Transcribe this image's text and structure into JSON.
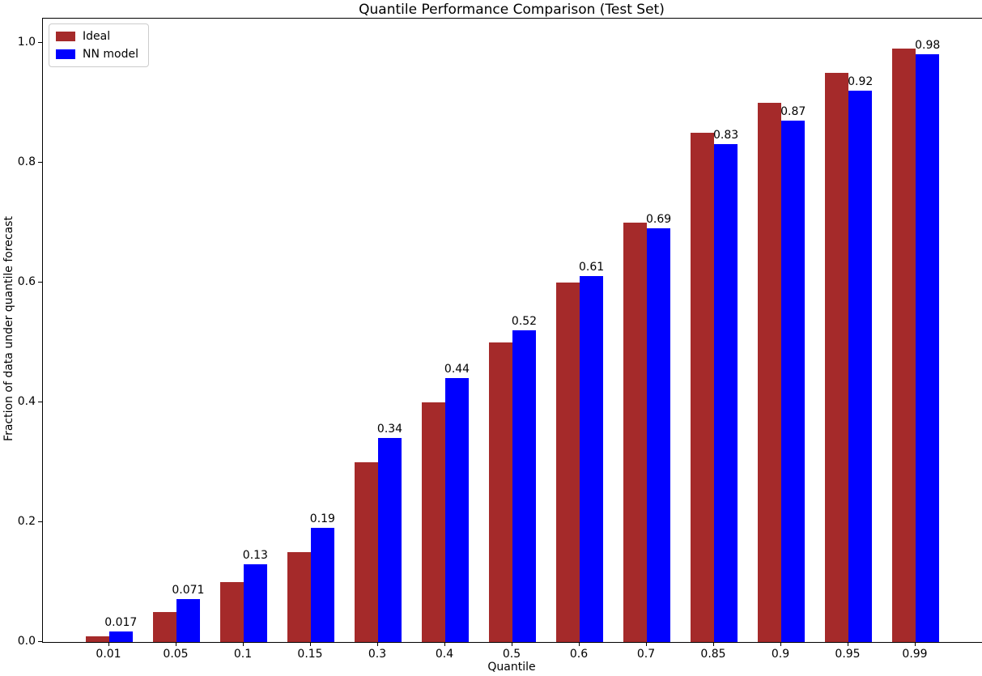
{
  "chart_data": {
    "type": "bar",
    "title": "Quantile Performance Comparison (Test Set)",
    "xlabel": "Quantile",
    "ylabel": "Fraction of data under quantile forecast",
    "categories": [
      "0.01",
      "0.05",
      "0.1",
      "0.15",
      "0.3",
      "0.4",
      "0.5",
      "0.6",
      "0.7",
      "0.85",
      "0.9",
      "0.95",
      "0.99"
    ],
    "series": [
      {
        "name": "Ideal",
        "color": "#a52a2a",
        "values": [
          0.01,
          0.05,
          0.1,
          0.15,
          0.3,
          0.4,
          0.5,
          0.6,
          0.7,
          0.85,
          0.9,
          0.95,
          0.99
        ]
      },
      {
        "name": "NN model",
        "color": "#0000ff",
        "values": [
          0.017,
          0.071,
          0.13,
          0.19,
          0.34,
          0.44,
          0.52,
          0.61,
          0.69,
          0.83,
          0.87,
          0.92,
          0.98
        ],
        "bar_labels": [
          "0.017",
          "0.071",
          "0.13",
          "0.19",
          "0.34",
          "0.44",
          "0.52",
          "0.61",
          "0.69",
          "0.83",
          "0.87",
          "0.92",
          "0.98"
        ]
      }
    ],
    "ytick_values": [
      0.0,
      0.2,
      0.4,
      0.6,
      0.8,
      1.0
    ],
    "ytick_labels": [
      "0.0",
      "0.2",
      "0.4",
      "0.6",
      "0.8",
      "1.0"
    ],
    "ylim": [
      0,
      1.04
    ],
    "legend_position": "upper left",
    "grid": false,
    "background_color": "#ffffff",
    "spine_color": "#000000"
  }
}
